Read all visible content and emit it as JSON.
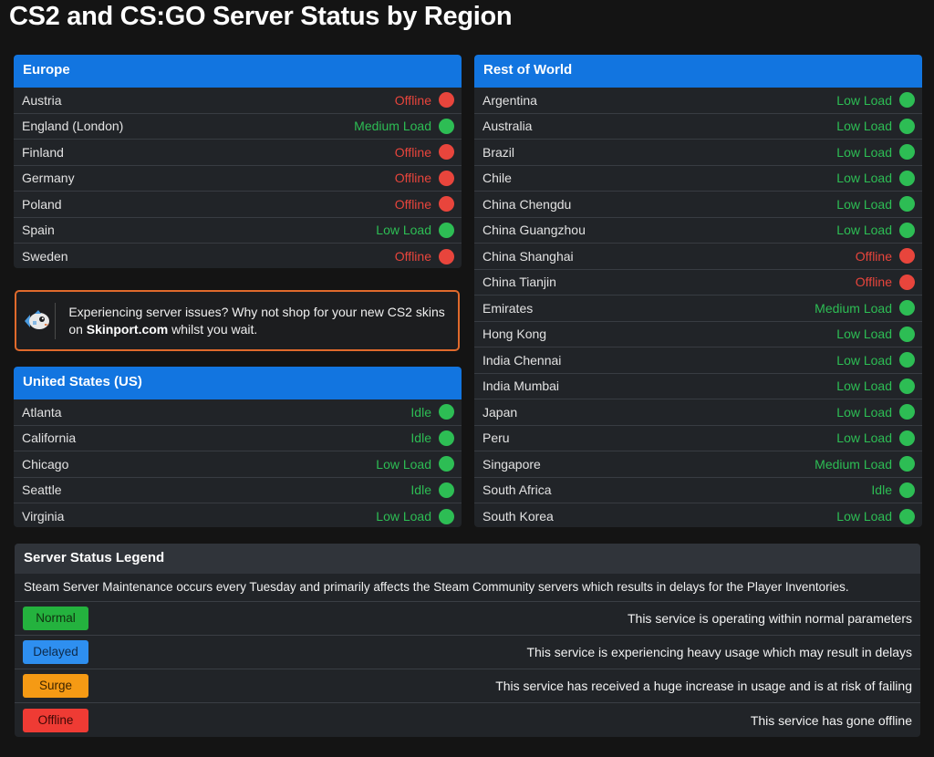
{
  "page": {
    "title": "CS2 and CS:GO Server Status by Region"
  },
  "colors": {
    "offline": "#e8453c",
    "online": "#2dbd54",
    "header_blue": "#1275e0",
    "promo_border": "#e06a2c"
  },
  "europe": {
    "title": "Europe",
    "rows": [
      {
        "name": "Austria",
        "status": "Offline",
        "state": "offline"
      },
      {
        "name": "England (London)",
        "status": "Medium Load",
        "state": "online"
      },
      {
        "name": "Finland",
        "status": "Offline",
        "state": "offline"
      },
      {
        "name": "Germany",
        "status": "Offline",
        "state": "offline"
      },
      {
        "name": "Poland",
        "status": "Offline",
        "state": "offline"
      },
      {
        "name": "Spain",
        "status": "Low Load",
        "state": "online"
      },
      {
        "name": "Sweden",
        "status": "Offline",
        "state": "offline"
      }
    ]
  },
  "promo": {
    "icon": "skinport-fish-icon",
    "text_before": "Experiencing server issues? Why not shop for your new CS2 skins on ",
    "link": "Skinport.com",
    "text_after": " whilst you wait."
  },
  "us": {
    "title": "United States (US)",
    "rows": [
      {
        "name": "Atlanta",
        "status": "Idle",
        "state": "online"
      },
      {
        "name": "California",
        "status": "Idle",
        "state": "online"
      },
      {
        "name": "Chicago",
        "status": "Low Load",
        "state": "online"
      },
      {
        "name": "Seattle",
        "status": "Idle",
        "state": "online"
      },
      {
        "name": "Virginia",
        "status": "Low Load",
        "state": "online"
      }
    ]
  },
  "world": {
    "title": "Rest of World",
    "rows": [
      {
        "name": "Argentina",
        "status": "Low Load",
        "state": "online"
      },
      {
        "name": "Australia",
        "status": "Low Load",
        "state": "online"
      },
      {
        "name": "Brazil",
        "status": "Low Load",
        "state": "online"
      },
      {
        "name": "Chile",
        "status": "Low Load",
        "state": "online"
      },
      {
        "name": "China Chengdu",
        "status": "Low Load",
        "state": "online"
      },
      {
        "name": "China Guangzhou",
        "status": "Low Load",
        "state": "online"
      },
      {
        "name": "China Shanghai",
        "status": "Offline",
        "state": "offline"
      },
      {
        "name": "China Tianjin",
        "status": "Offline",
        "state": "offline"
      },
      {
        "name": "Emirates",
        "status": "Medium Load",
        "state": "online"
      },
      {
        "name": "Hong Kong",
        "status": "Low Load",
        "state": "online"
      },
      {
        "name": "India Chennai",
        "status": "Low Load",
        "state": "online"
      },
      {
        "name": "India Mumbai",
        "status": "Low Load",
        "state": "online"
      },
      {
        "name": "Japan",
        "status": "Low Load",
        "state": "online"
      },
      {
        "name": "Peru",
        "status": "Low Load",
        "state": "online"
      },
      {
        "name": "Singapore",
        "status": "Medium Load",
        "state": "online"
      },
      {
        "name": "South Africa",
        "status": "Idle",
        "state": "online"
      },
      {
        "name": "South Korea",
        "status": "Low Load",
        "state": "online"
      }
    ]
  },
  "legend": {
    "title": "Server Status Legend",
    "note": "Steam Server Maintenance occurs every Tuesday and primarily affects the Steam Community servers which results in delays for the Player Inventories.",
    "items": [
      {
        "label": "Normal",
        "color": "#24b23e",
        "text_color": "#10300f",
        "description": "This service is operating within normal parameters"
      },
      {
        "label": "Delayed",
        "color": "#2e8ff0",
        "text_color": "#0d2a4a",
        "description": "This service is experiencing heavy usage which may result in delays"
      },
      {
        "label": "Surge",
        "color": "#f59a14",
        "text_color": "#3d2400",
        "description": "This service has received a huge increase in usage and is at risk of failing"
      },
      {
        "label": "Offline",
        "color": "#ef3b34",
        "text_color": "#3f0805",
        "description": "This service has gone offline"
      }
    ]
  }
}
